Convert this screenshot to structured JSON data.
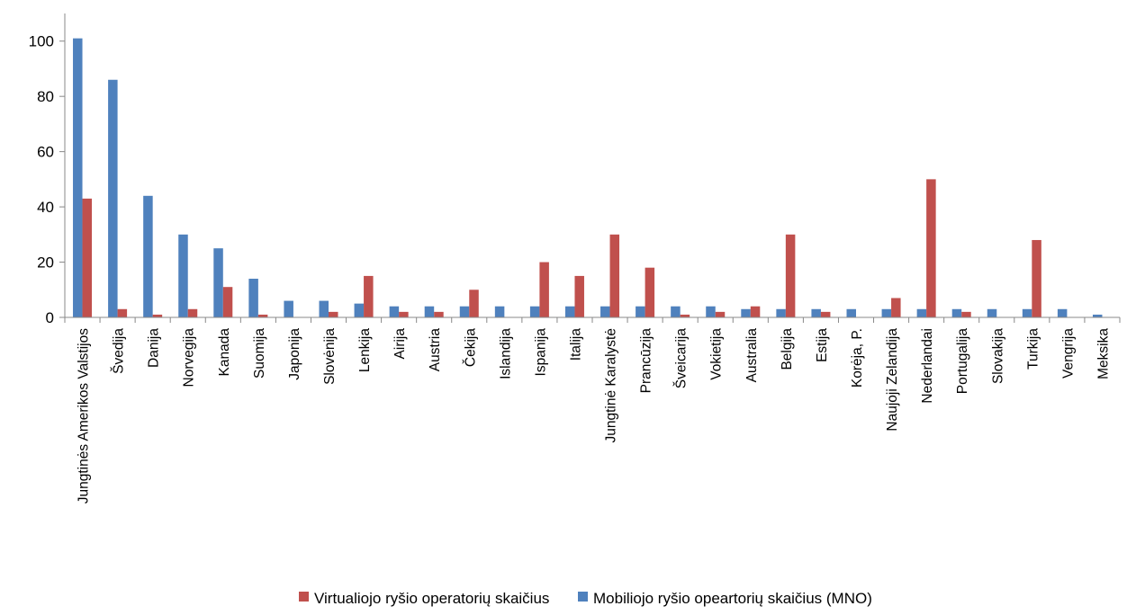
{
  "chart_data": {
    "type": "bar",
    "categories": [
      "Jungtinės Amerikos Valstijos",
      "Švedija",
      "Danija",
      "Norvegija",
      "Kanada",
      "Suomija",
      "Japonija",
      "Slovėnija",
      "Lenkija",
      "Airija",
      "Austria",
      "Čekija",
      "Islandija",
      "Ispanija",
      "Italija",
      "Jungtinė Karalystė",
      "Prancūzija",
      "Šveicarija",
      "Vokietija",
      "Australia",
      "Belgija",
      "Estija",
      "Korėja, P.",
      "Naujoji Zelandija",
      "Nederlandai",
      "Portugalija",
      "Slovakija",
      "Turkija",
      "Vengrija",
      "Meksika"
    ],
    "series": [
      {
        "name": "Mobiliojo ryšio opeartorių skaičius (MNO)",
        "color": "#4f81bd",
        "values": [
          101,
          86,
          44,
          30,
          25,
          14,
          6,
          6,
          5,
          4,
          4,
          4,
          4,
          4,
          4,
          4,
          4,
          4,
          4,
          3,
          3,
          3,
          3,
          3,
          3,
          3,
          3,
          3,
          3,
          1
        ]
      },
      {
        "name": "Virtualiojo ryšio operatorių skaičius",
        "color": "#c0504d",
        "values": [
          43,
          3,
          1,
          3,
          11,
          1,
          0,
          2,
          15,
          2,
          2,
          10,
          0,
          20,
          15,
          30,
          18,
          1,
          2,
          4,
          30,
          2,
          0,
          7,
          50,
          2,
          0,
          28,
          0,
          0
        ]
      }
    ],
    "yticks": [
      "0",
      "20",
      "40",
      "60",
      "80",
      "100"
    ],
    "ylim": [
      0,
      110
    ],
    "legend": {
      "position": "bottom",
      "order": [
        "Virtualiojo ryšio operatorių skaičius",
        "Mobiliojo ryšio opeartorių skaičius (MNO)"
      ]
    },
    "grid": false
  }
}
